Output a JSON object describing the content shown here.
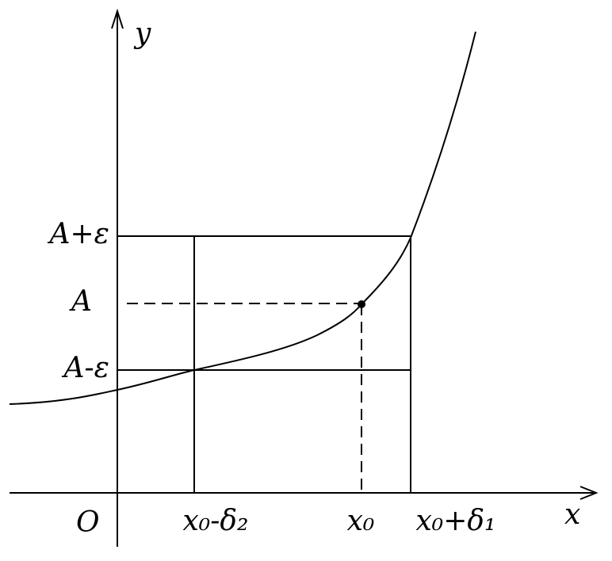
{
  "axes": {
    "y_label": "y",
    "x_label": "x",
    "origin": "O"
  },
  "y_labels": {
    "upper": "A+ε",
    "middle": "A",
    "lower": "A-ε"
  },
  "x_labels": {
    "left": "x₀-δ₂",
    "middle": "x₀",
    "right": "x₀+δ₁"
  }
}
